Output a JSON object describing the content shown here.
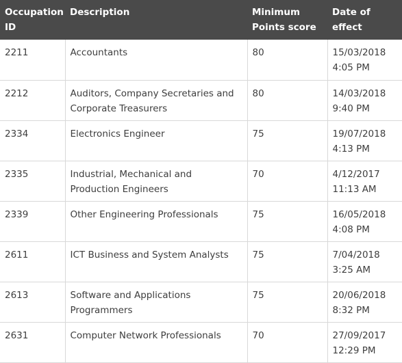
{
  "table": {
    "headers": [
      "Occupation ID",
      "Description",
      "Minimum Points score",
      "Date of effect"
    ],
    "rows": [
      {
        "id": "2211",
        "description": "Accountants",
        "points": "80",
        "date": "15/03/2018",
        "time": "4:05 PM"
      },
      {
        "id": "2212",
        "description": "Auditors, Company Secretaries and Corporate Treasurers",
        "points": "80",
        "date": "14/03/2018",
        "time": "9:40 PM"
      },
      {
        "id": "2334",
        "description": "Electronics Engineer",
        "points": "75",
        "date": "19/07/2018",
        "time": "4:13 PM"
      },
      {
        "id": "2335",
        "description": "Industrial, Mechanical and Production Engineers",
        "points": "70",
        "date": "4/12/2017",
        "time": "11:13 AM"
      },
      {
        "id": "2339",
        "description": "Other Engineering Professionals",
        "points": "75",
        "date": "16/05/2018",
        "time": "4:08 PM"
      },
      {
        "id": "2611",
        "description": "ICT Business and System Analysts",
        "points": "75",
        "date": "7/04/2018",
        "time": "3:25 AM"
      },
      {
        "id": "2613",
        "description": "Software and Applications Programmers",
        "points": "75",
        "date": "20/06/2018",
        "time": "8:32 PM"
      },
      {
        "id": "2631",
        "description": "Computer Network Professionals",
        "points": "70",
        "date": "27/09/2017",
        "time": "12:29 PM"
      }
    ]
  }
}
